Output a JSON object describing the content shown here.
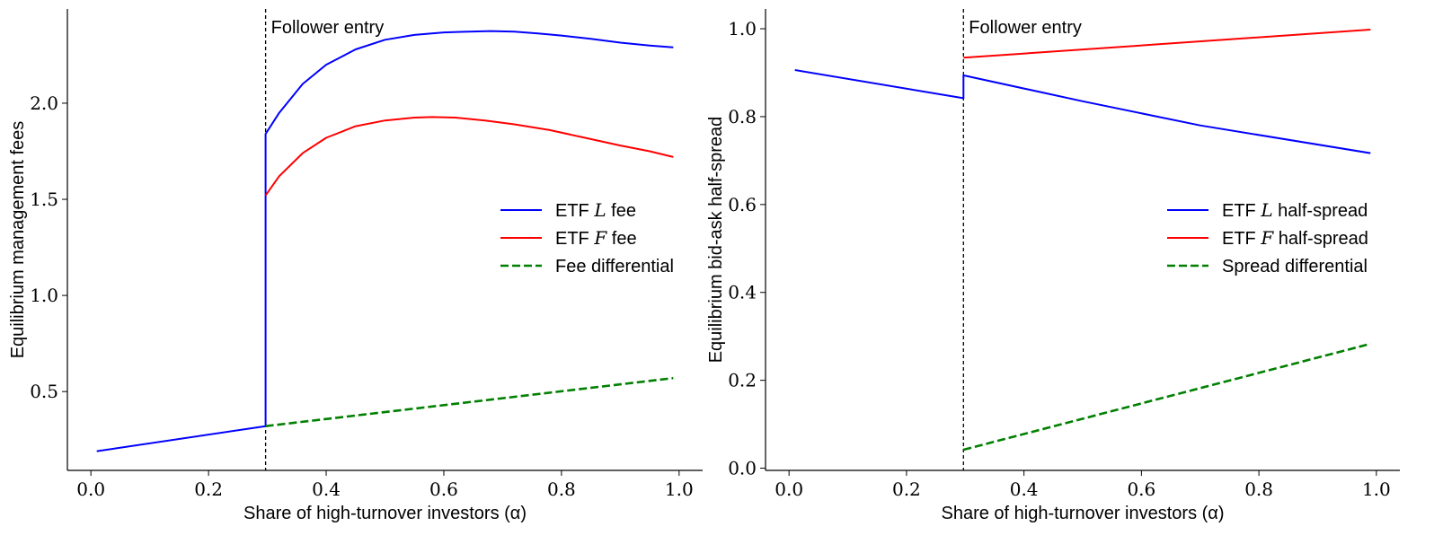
{
  "chart_data": [
    {
      "type": "line",
      "xlabel": "Share of high-turnover investors (α)",
      "ylabel": "Equilibrium management fees",
      "xlim": [
        -0.04,
        1.04
      ],
      "ylim": [
        0.09,
        2.49
      ],
      "xticks": [
        {
          "value": 0.0,
          "label": "0.0"
        },
        {
          "value": 0.2,
          "label": "0.2"
        },
        {
          "value": 0.4,
          "label": "0.4"
        },
        {
          "value": 0.6,
          "label": "0.6"
        },
        {
          "value": 0.8,
          "label": "0.8"
        },
        {
          "value": 1.0,
          "label": "1.0"
        }
      ],
      "yticks": [
        {
          "value": 0.5,
          "label": "0.5"
        },
        {
          "value": 1.0,
          "label": "1.0"
        },
        {
          "value": 1.5,
          "label": "1.5"
        },
        {
          "value": 2.0,
          "label": "2.0"
        }
      ],
      "vline": {
        "x": 0.297,
        "label": "Follower entry"
      },
      "legend": {
        "placement": "center-right"
      },
      "series": [
        {
          "name": "ETF L fee",
          "legend_prefix": "ETF ",
          "legend_math": "L",
          "legend_suffix": " fee",
          "color": "#0000ff",
          "dash": "solid",
          "x": [
            0.01,
            0.297,
            0.297,
            0.32,
            0.36,
            0.4,
            0.45,
            0.5,
            0.55,
            0.6,
            0.65,
            0.68,
            0.72,
            0.76,
            0.8,
            0.85,
            0.9,
            0.95,
            0.99
          ],
          "y": [
            0.19,
            0.32,
            1.84,
            1.95,
            2.1,
            2.2,
            2.28,
            2.33,
            2.355,
            2.368,
            2.373,
            2.375,
            2.372,
            2.363,
            2.352,
            2.335,
            2.315,
            2.3,
            2.29
          ]
        },
        {
          "name": "ETF F fee",
          "legend_prefix": "ETF ",
          "legend_math": "F",
          "legend_suffix": " fee",
          "color": "#ff0000",
          "dash": "solid",
          "x": [
            0.297,
            0.32,
            0.36,
            0.4,
            0.45,
            0.5,
            0.55,
            0.58,
            0.62,
            0.67,
            0.72,
            0.78,
            0.84,
            0.9,
            0.95,
            0.99
          ],
          "y": [
            1.52,
            1.62,
            1.74,
            1.82,
            1.88,
            1.91,
            1.925,
            1.928,
            1.925,
            1.91,
            1.89,
            1.86,
            1.82,
            1.78,
            1.75,
            1.72
          ]
        },
        {
          "name": "Fee differential",
          "legend_prefix": "Fee differential",
          "legend_math": "",
          "legend_suffix": "",
          "color": "#008000",
          "dash": "dashed",
          "x": [
            0.297,
            0.99
          ],
          "y": [
            0.32,
            0.57
          ]
        }
      ]
    },
    {
      "type": "line",
      "xlabel": "Share of high-turnover investors (α)",
      "ylabel": "Equilibrium bid-ask half-spread",
      "xlim": [
        -0.04,
        1.04
      ],
      "ylim": [
        -0.005,
        1.045
      ],
      "xticks": [
        {
          "value": 0.0,
          "label": "0.0"
        },
        {
          "value": 0.2,
          "label": "0.2"
        },
        {
          "value": 0.4,
          "label": "0.4"
        },
        {
          "value": 0.6,
          "label": "0.6"
        },
        {
          "value": 0.8,
          "label": "0.8"
        },
        {
          "value": 1.0,
          "label": "1.0"
        }
      ],
      "yticks": [
        {
          "value": 0.0,
          "label": "0.0"
        },
        {
          "value": 0.2,
          "label": "0.2"
        },
        {
          "value": 0.4,
          "label": "0.4"
        },
        {
          "value": 0.6,
          "label": "0.6"
        },
        {
          "value": 0.8,
          "label": "0.8"
        },
        {
          "value": 1.0,
          "label": "1.0"
        }
      ],
      "vline": {
        "x": 0.297,
        "label": "Follower entry"
      },
      "legend": {
        "placement": "center-right"
      },
      "series": [
        {
          "name": "ETF L half-spread",
          "legend_prefix": "ETF ",
          "legend_math": "L",
          "legend_suffix": " half-spread",
          "color": "#0000ff",
          "dash": "solid",
          "x": [
            0.01,
            0.297,
            0.297,
            0.3,
            0.5,
            0.7,
            0.99
          ],
          "y": [
            0.906,
            0.842,
            0.894,
            0.893,
            0.835,
            0.78,
            0.717
          ]
        },
        {
          "name": "ETF F half-spread",
          "legend_prefix": "ETF ",
          "legend_math": "F",
          "legend_suffix": " half-spread",
          "color": "#ff0000",
          "dash": "solid",
          "x": [
            0.297,
            0.99
          ],
          "y": [
            0.934,
            0.998
          ]
        },
        {
          "name": "Spread differential",
          "legend_prefix": "Spread differential",
          "legend_math": "",
          "legend_suffix": "",
          "color": "#008000",
          "dash": "dashed",
          "x": [
            0.297,
            0.99
          ],
          "y": [
            0.042,
            0.283
          ]
        }
      ]
    }
  ]
}
